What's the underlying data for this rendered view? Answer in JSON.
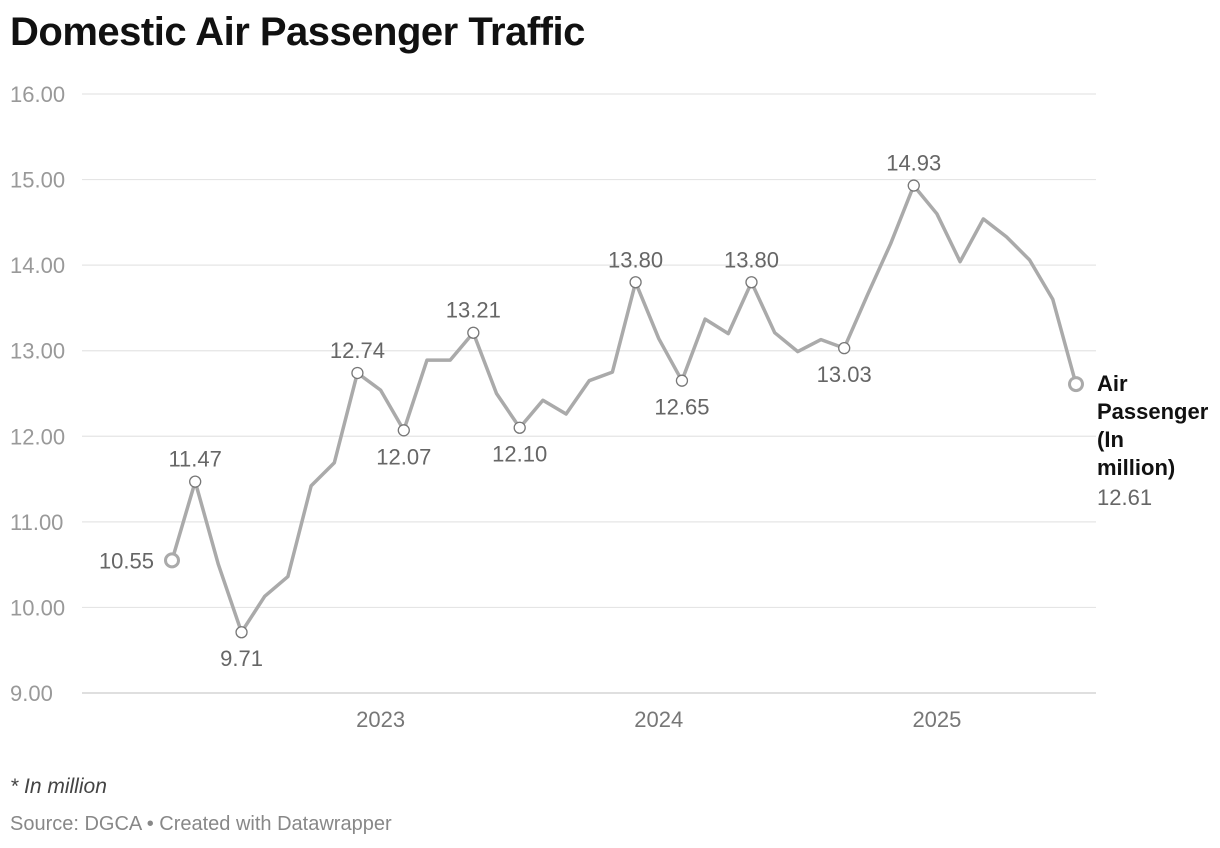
{
  "title": "Domestic Air Passenger Traffic",
  "note": "* In million",
  "source": "Source: DGCA • Created with Datawrapper",
  "colors": {
    "line": "#aaaaaa",
    "grid": "#e5e5e5",
    "tick_text": "#999999",
    "label_text": "#666666",
    "title": "#111111"
  },
  "chart_data": {
    "type": "line",
    "ylim": [
      9,
      16
    ],
    "yticks": [
      "9.00",
      "10.00",
      "11.00",
      "12.00",
      "13.00",
      "14.00",
      "15.00",
      "16.00"
    ],
    "xticks": [
      {
        "label": "2023",
        "index": 9
      },
      {
        "label": "2024",
        "index": 21
      },
      {
        "label": "2025",
        "index": 33
      }
    ],
    "grid": true,
    "series": [
      {
        "name": "Air Passenger (In million)",
        "end_label": "12.61",
        "values": [
          10.55,
          11.47,
          10.5,
          9.71,
          10.13,
          10.36,
          11.42,
          11.69,
          12.74,
          12.54,
          12.07,
          12.89,
          12.89,
          13.21,
          12.5,
          12.1,
          12.42,
          12.26,
          12.65,
          12.75,
          13.8,
          13.14,
          12.65,
          13.37,
          13.2,
          13.8,
          13.21,
          12.99,
          13.13,
          13.03,
          13.65,
          14.25,
          14.93,
          14.6,
          14.04,
          14.54,
          14.33,
          14.06,
          13.6,
          12.61
        ]
      }
    ],
    "annotations": [
      {
        "index": 0,
        "text": "10.55",
        "pos": "left"
      },
      {
        "index": 1,
        "text": "11.47",
        "pos": "above"
      },
      {
        "index": 3,
        "text": "9.71",
        "pos": "below"
      },
      {
        "index": 8,
        "text": "12.74",
        "pos": "above"
      },
      {
        "index": 10,
        "text": "12.07",
        "pos": "below"
      },
      {
        "index": 13,
        "text": "13.21",
        "pos": "above"
      },
      {
        "index": 15,
        "text": "12.10",
        "pos": "below"
      },
      {
        "index": 20,
        "text": "13.80",
        "pos": "above"
      },
      {
        "index": 22,
        "text": "12.65",
        "pos": "below"
      },
      {
        "index": 25,
        "text": "13.80",
        "pos": "above"
      },
      {
        "index": 29,
        "text": "13.03",
        "pos": "below"
      },
      {
        "index": 32,
        "text": "14.93",
        "pos": "above"
      }
    ]
  }
}
